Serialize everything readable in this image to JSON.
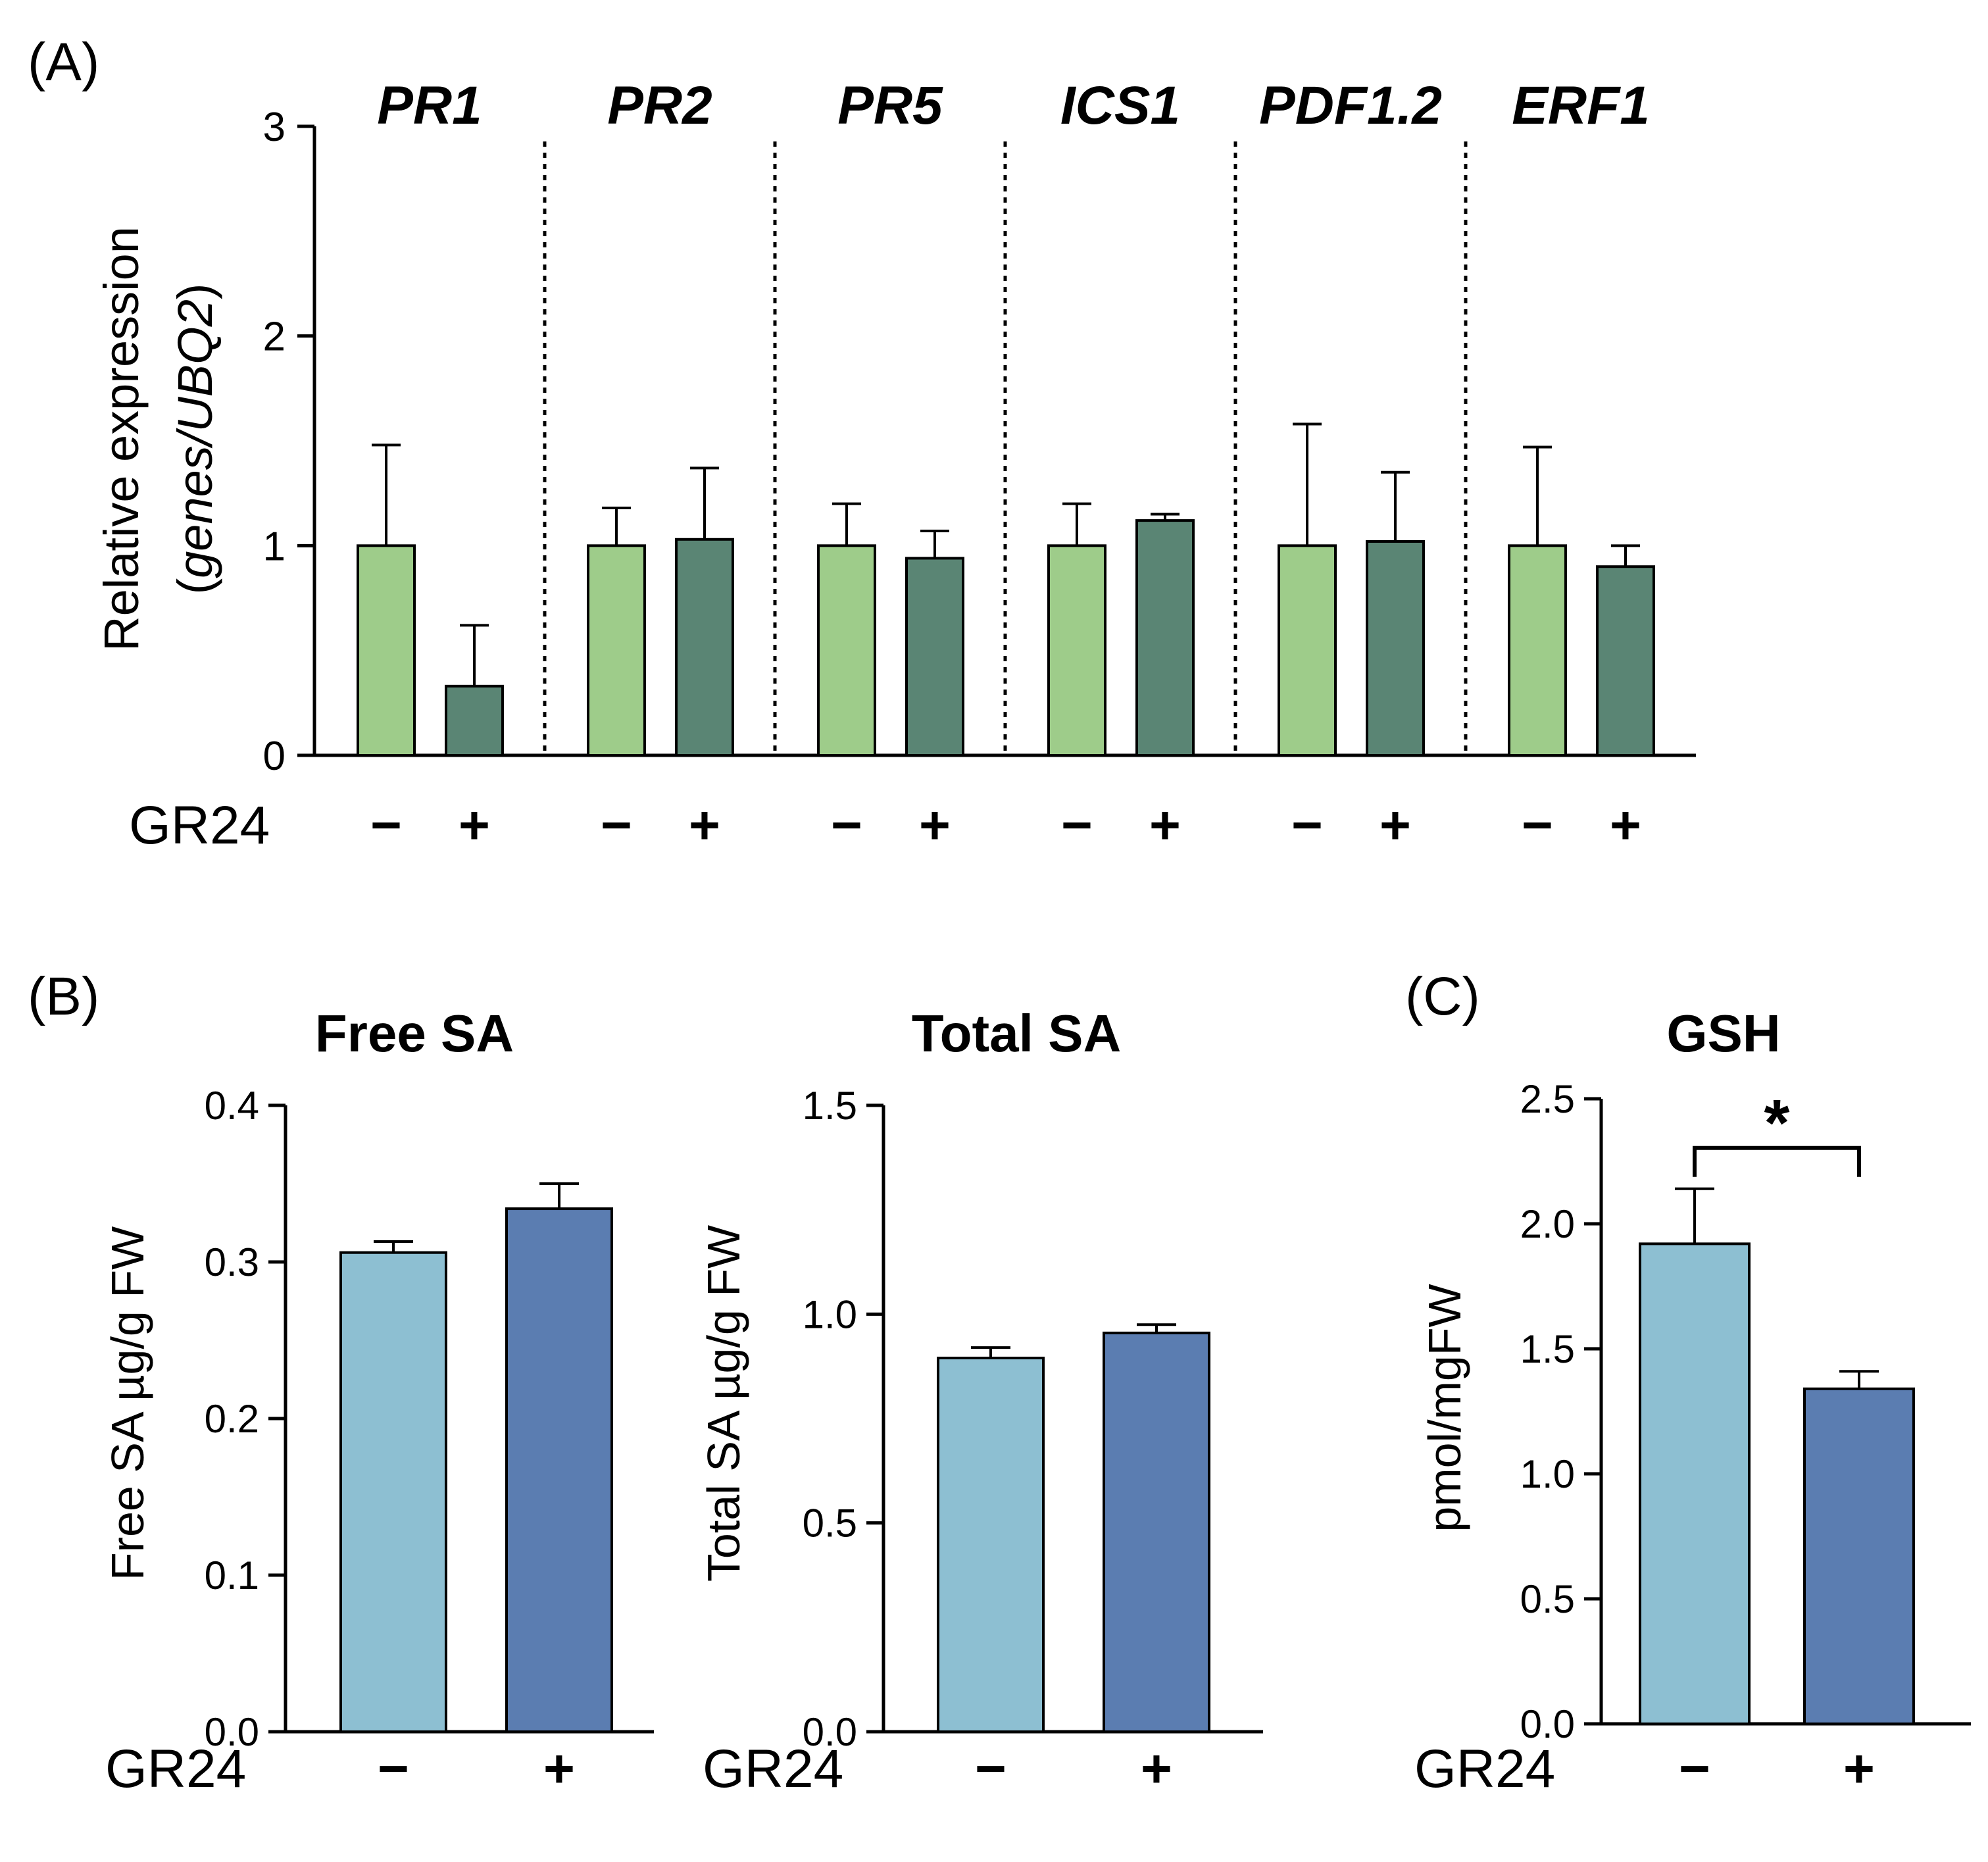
{
  "chart_data": [
    {
      "id": "A",
      "panel_label": "(A)",
      "type": "bar",
      "title": "",
      "ylabel": "Relative expression",
      "ylabel_line2_prefix": "(",
      "ylabel_line2_italic": "genes/UBQ2",
      "ylabel_line2_suffix": ")",
      "ylim": [
        0,
        3
      ],
      "yticks": [
        "0",
        "1",
        "2",
        "3"
      ],
      "treatment_label": "GR24",
      "treatment_signs": [
        "−",
        "+"
      ],
      "groups": [
        "PR1",
        "PR2",
        "PR5",
        "ICS1",
        "PDF1.2",
        "ERF1"
      ],
      "series": [
        {
          "name": "GR24 −",
          "values": [
            1.0,
            1.0,
            1.0,
            1.0,
            1.0,
            1.0
          ],
          "errors": [
            0.48,
            0.18,
            0.2,
            0.2,
            0.58,
            0.47
          ]
        },
        {
          "name": "GR24 +",
          "values": [
            0.33,
            1.03,
            0.94,
            1.12,
            1.02,
            0.9
          ],
          "errors": [
            0.29,
            0.34,
            0.13,
            0.03,
            0.33,
            0.1
          ]
        }
      ],
      "colors": [
        "#9ecc8a",
        "#5a8574"
      ]
    },
    {
      "id": "B1",
      "panel_label": "(B)",
      "type": "bar",
      "title": "Free SA",
      "ylabel": "Free SA µg/g FW",
      "ylim": [
        0,
        0.4
      ],
      "yticks": [
        "0.0",
        "0.1",
        "0.2",
        "0.3",
        "0.4"
      ],
      "treatment_label": "GR24",
      "categories": [
        "−",
        "+"
      ],
      "values": [
        0.306,
        0.334
      ],
      "errors": [
        0.007,
        0.016
      ],
      "colors": [
        "#8dbfd2",
        "#5b7db1"
      ]
    },
    {
      "id": "B2",
      "panel_label": "",
      "type": "bar",
      "title": "Total SA",
      "ylabel": "Total SA µg/g FW",
      "ylim": [
        0,
        1.5
      ],
      "yticks": [
        "0.0",
        "0.5",
        "1.0",
        "1.5"
      ],
      "treatment_label": "GR24",
      "categories": [
        "−",
        "+"
      ],
      "values": [
        0.895,
        0.955
      ],
      "errors": [
        0.025,
        0.02
      ],
      "colors": [
        "#8dbfd2",
        "#5b7db1"
      ]
    },
    {
      "id": "C",
      "panel_label": "(C)",
      "type": "bar",
      "title": "GSH",
      "ylabel": "pmol/mgFW",
      "ylim": [
        0,
        2.5
      ],
      "yticks": [
        "0.0",
        "0.5",
        "1.0",
        "1.5",
        "2.0",
        "2.5"
      ],
      "treatment_label": "GR24",
      "categories": [
        "−",
        "+"
      ],
      "values": [
        1.92,
        1.34
      ],
      "errors": [
        0.22,
        0.07
      ],
      "significance": "*",
      "colors": [
        "#8dbfd2",
        "#5b7db1"
      ]
    }
  ]
}
